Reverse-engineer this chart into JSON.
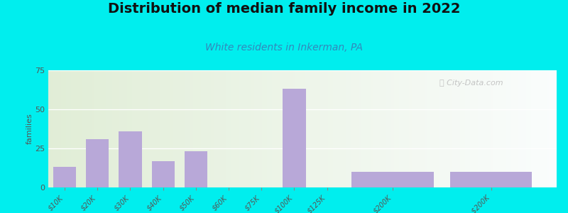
{
  "title": "Distribution of median family income in 2022",
  "subtitle": "White residents in Inkerman, PA",
  "ylabel": "families",
  "categories": [
    "$10K",
    "$20K",
    "$30K",
    "$40K",
    "$50K",
    "$60K",
    "$75K",
    "$100K",
    "$125K",
    "$200K",
    "> $200K"
  ],
  "values": [
    13,
    31,
    36,
    17,
    23,
    0,
    0,
    63,
    0,
    10,
    10
  ],
  "bar_color": "#b8a8d8",
  "bg_outer": "#00EEEE",
  "bg_plot_left": "#d8ecd0",
  "bg_plot_right": "#e8eef8",
  "ylim": [
    0,
    75
  ],
  "yticks": [
    0,
    25,
    50,
    75
  ],
  "title_fontsize": 14,
  "subtitle_fontsize": 10,
  "ylabel_fontsize": 8,
  "watermark": "City-Data.com",
  "x_positions": [
    0,
    1,
    2,
    3,
    4,
    5,
    6,
    7,
    8,
    10,
    13
  ],
  "bar_widths": [
    0.7,
    0.7,
    0.7,
    0.7,
    0.7,
    0.7,
    0.7,
    0.7,
    0.7,
    2.5,
    2.5
  ]
}
